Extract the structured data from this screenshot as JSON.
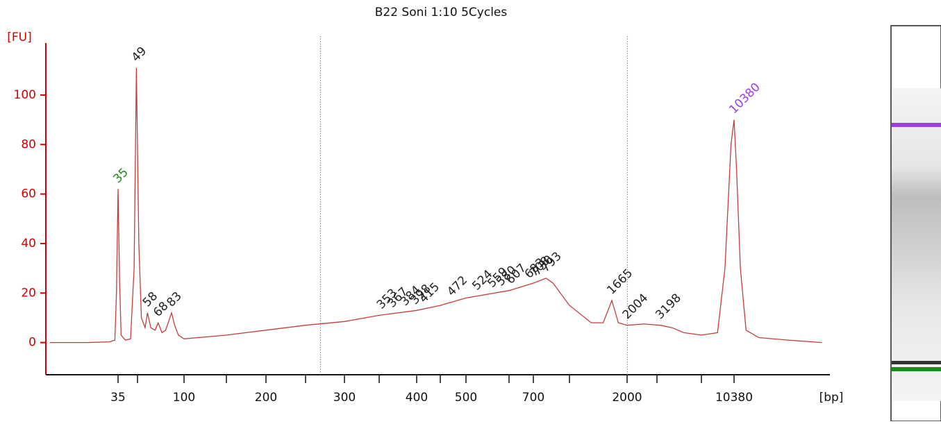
{
  "chart_data": {
    "type": "line",
    "title": "B22 Soni 1:10 5Cycles",
    "y_label": "[FU]",
    "x_label": "[bp]",
    "ylim": [
      -13,
      121
    ],
    "yticks": [
      0,
      20,
      40,
      60,
      80,
      100
    ],
    "xlim": [
      9,
      32000
    ],
    "xticks": [
      35,
      {
        "value": 50,
        "label": null
      },
      100,
      {
        "value": 150,
        "label": null
      },
      200,
      {
        "value": 250,
        "label": null
      },
      300,
      {
        "value": 350,
        "label": null
      },
      400,
      {
        "value": 450,
        "label": null
      },
      500,
      {
        "value": 600,
        "label": null
      },
      700,
      {
        "value": 1000,
        "label": null
      },
      2000,
      {
        "value": 3000,
        "label": null
      },
      {
        "value": 7000,
        "label": null
      },
      10380
    ],
    "series": [
      {
        "color": "#c43c3c",
        "x": [
          10,
          20,
          30,
          33,
          34,
          35,
          36,
          37,
          40,
          44,
          47,
          49,
          51,
          53,
          56,
          58,
          61,
          65,
          68,
          72,
          76,
          80,
          83,
          87,
          92,
          100,
          150,
          200,
          250,
          300,
          350,
          400,
          450,
          500,
          600,
          700,
          793,
          850,
          1000,
          1300,
          1500,
          1665,
          1800,
          2004,
          2500,
          3198,
          4000,
          5000,
          7000,
          8500,
          9300,
          10000,
          10380,
          10700,
          11200,
          12000,
          14000,
          20000,
          30000
        ],
        "values": [
          0,
          0,
          0.3,
          1,
          20,
          62,
          25,
          3,
          1,
          1.5,
          30,
          111,
          40,
          10,
          6,
          12,
          6,
          5,
          8,
          4,
          5,
          9,
          12,
          7,
          3,
          1.5,
          3,
          5,
          7,
          8.5,
          11,
          13,
          15,
          18,
          21,
          24,
          26,
          24,
          15,
          8,
          8,
          17,
          8,
          7,
          7.5,
          7,
          6,
          4,
          3,
          4,
          30,
          80,
          90,
          70,
          30,
          5,
          2,
          1,
          0
        ]
      }
    ],
    "peaks": [
      35,
      49,
      58,
      68,
      83,
      353,
      367,
      384,
      398,
      415,
      472,
      524,
      559,
      580,
      607,
      683,
      708,
      730,
      793,
      1665,
      2004,
      3198,
      10380
    ],
    "peak_colors": [
      "#1a8a1a",
      "#222222",
      "#222222",
      "#222222",
      "#222222",
      "#222222",
      "#222222",
      "#222222",
      "#222222",
      "#222222",
      "#222222",
      "#222222",
      "#222222",
      "#222222",
      "#222222",
      "#222222",
      "#222222",
      "#222222",
      "#222222",
      "#222222",
      "#222222",
      "#222222",
      "#9b3fe0"
    ],
    "region_bounds": [
      268,
      2010
    ]
  }
}
